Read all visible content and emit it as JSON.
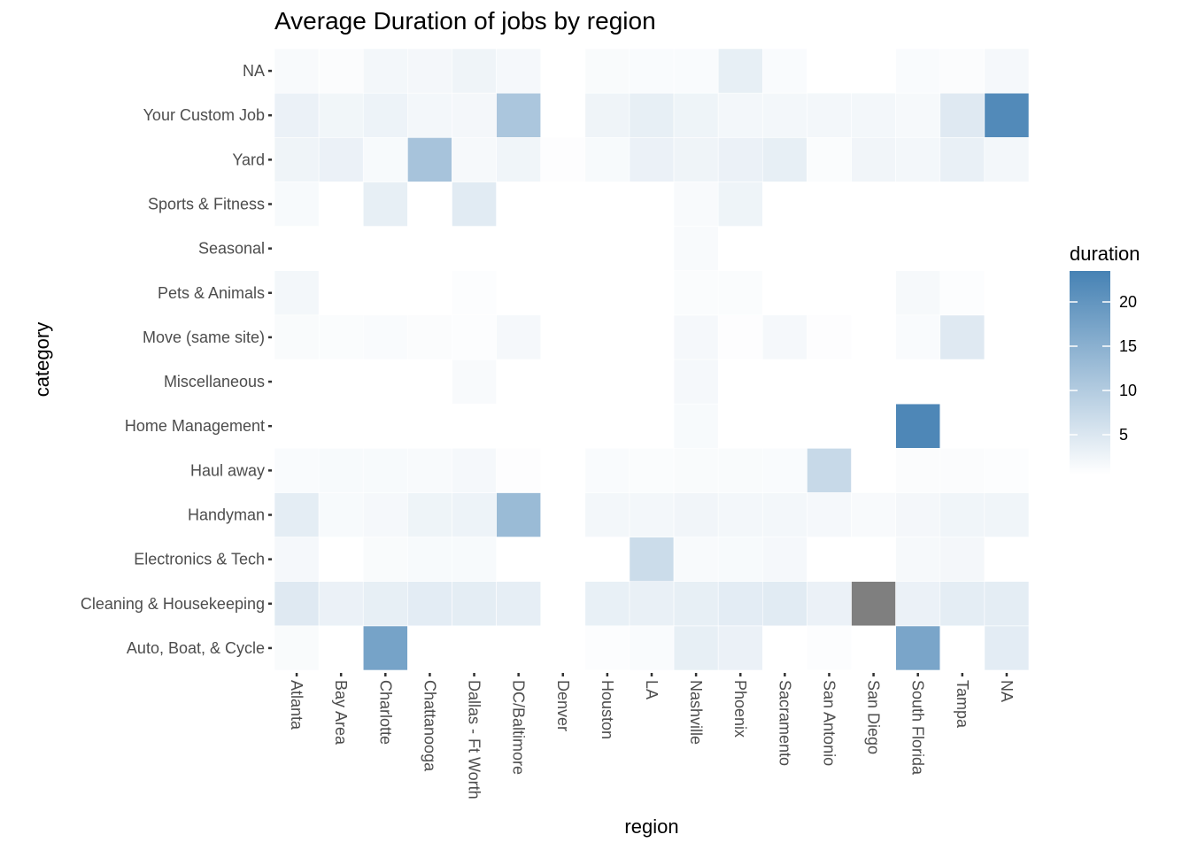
{
  "chart_data": {
    "type": "heatmap",
    "title": "Average Duration of jobs by region",
    "xlabel": "region",
    "ylabel": "category",
    "x": [
      "Atlanta",
      "Bay Area",
      "Charlotte",
      "Chattanooga",
      "Dallas - Ft Worth",
      "DC/Baltimore",
      "Denver",
      "Houston",
      "LA",
      "Nashville",
      "Phoenix",
      "Sacramento",
      "San Antonio",
      "San Diego",
      "South Florida",
      "Tampa",
      "NA"
    ],
    "y": [
      "Auto, Boat, & Cycle",
      "Cleaning & Housekeeping",
      "Electronics & Tech",
      "Handyman",
      "Haul away",
      "Home Management",
      "Miscellaneous",
      "Move (same site)",
      "Pets & Animals",
      "Seasonal",
      "Sports & Fitness",
      "Yard",
      "Your Custom Job",
      "NA"
    ],
    "values": [
      [
        1.3,
        null,
        17.5,
        null,
        null,
        null,
        null,
        0.9,
        1.2,
        3.5,
        3.0,
        null,
        0.9,
        null,
        17.0,
        null,
        4.0
      ],
      [
        4.5,
        3.0,
        3.5,
        4.0,
        3.8,
        3.6,
        null,
        3.3,
        3.2,
        3.5,
        4.0,
        4.2,
        3.0,
        null,
        3.0,
        3.8,
        3.8
      ],
      [
        1.8,
        null,
        1.3,
        1.5,
        1.5,
        null,
        null,
        null,
        7.0,
        1.4,
        1.5,
        1.8,
        null,
        null,
        1.6,
        1.9,
        null
      ],
      [
        3.8,
        1.5,
        1.8,
        2.6,
        2.7,
        13.0,
        null,
        2.0,
        2.0,
        2.3,
        2.0,
        2.0,
        1.7,
        1.4,
        1.9,
        2.4,
        2.4
      ],
      [
        1.2,
        1.5,
        1.5,
        1.4,
        1.7,
        0.8,
        null,
        1.2,
        1.1,
        1.3,
        1.3,
        1.2,
        7.5,
        null,
        1.0,
        1.0,
        0.9
      ],
      [
        null,
        null,
        null,
        null,
        null,
        null,
        null,
        null,
        null,
        1.5,
        null,
        null,
        null,
        null,
        22.5,
        null,
        null
      ],
      [
        null,
        null,
        null,
        null,
        1.4,
        null,
        null,
        null,
        null,
        1.7,
        null,
        null,
        null,
        null,
        null,
        null,
        null
      ],
      [
        1.3,
        1.1,
        1.2,
        1.0,
        0.9,
        1.8,
        null,
        null,
        null,
        1.8,
        0.8,
        1.8,
        0.8,
        null,
        1.2,
        4.5,
        null
      ],
      [
        2.0,
        null,
        null,
        null,
        0.9,
        null,
        null,
        null,
        null,
        1.1,
        1.1,
        null,
        null,
        null,
        1.6,
        0.9,
        null
      ],
      [
        null,
        null,
        null,
        null,
        null,
        null,
        null,
        null,
        null,
        1.4,
        null,
        null,
        null,
        null,
        null,
        null,
        null
      ],
      [
        1.5,
        null,
        3.5,
        null,
        4.2,
        null,
        null,
        null,
        null,
        1.4,
        2.6,
        null,
        null,
        null,
        null,
        null,
        null
      ],
      [
        2.5,
        3.0,
        1.5,
        11.5,
        1.6,
        2.4,
        0.8,
        1.5,
        3.0,
        2.5,
        3.0,
        3.5,
        1.1,
        2.3,
        2.0,
        3.2,
        2.0
      ],
      [
        3.0,
        2.2,
        2.8,
        2.0,
        1.9,
        11.0,
        null,
        2.5,
        3.5,
        2.6,
        2.0,
        2.0,
        2.0,
        2.0,
        1.6,
        4.5,
        22.0
      ],
      [
        1.4,
        1.0,
        2.0,
        1.9,
        2.5,
        1.8,
        null,
        1.3,
        1.2,
        1.2,
        3.5,
        1.2,
        null,
        null,
        1.2,
        1.0,
        1.7
      ]
    ],
    "na_cells": [
      {
        "x": "San Diego",
        "y": "Cleaning & Housekeeping"
      }
    ],
    "legend": {
      "title": "duration",
      "placement": "right",
      "min": 0.5,
      "max": 23.5,
      "ticks": [
        5,
        10,
        15,
        20
      ]
    },
    "colors": {
      "low": "#ffffff",
      "high": "#4682b4",
      "na": "#7f7f7f",
      "axis_text": "#4d4d4d",
      "tick": "#333333"
    }
  }
}
